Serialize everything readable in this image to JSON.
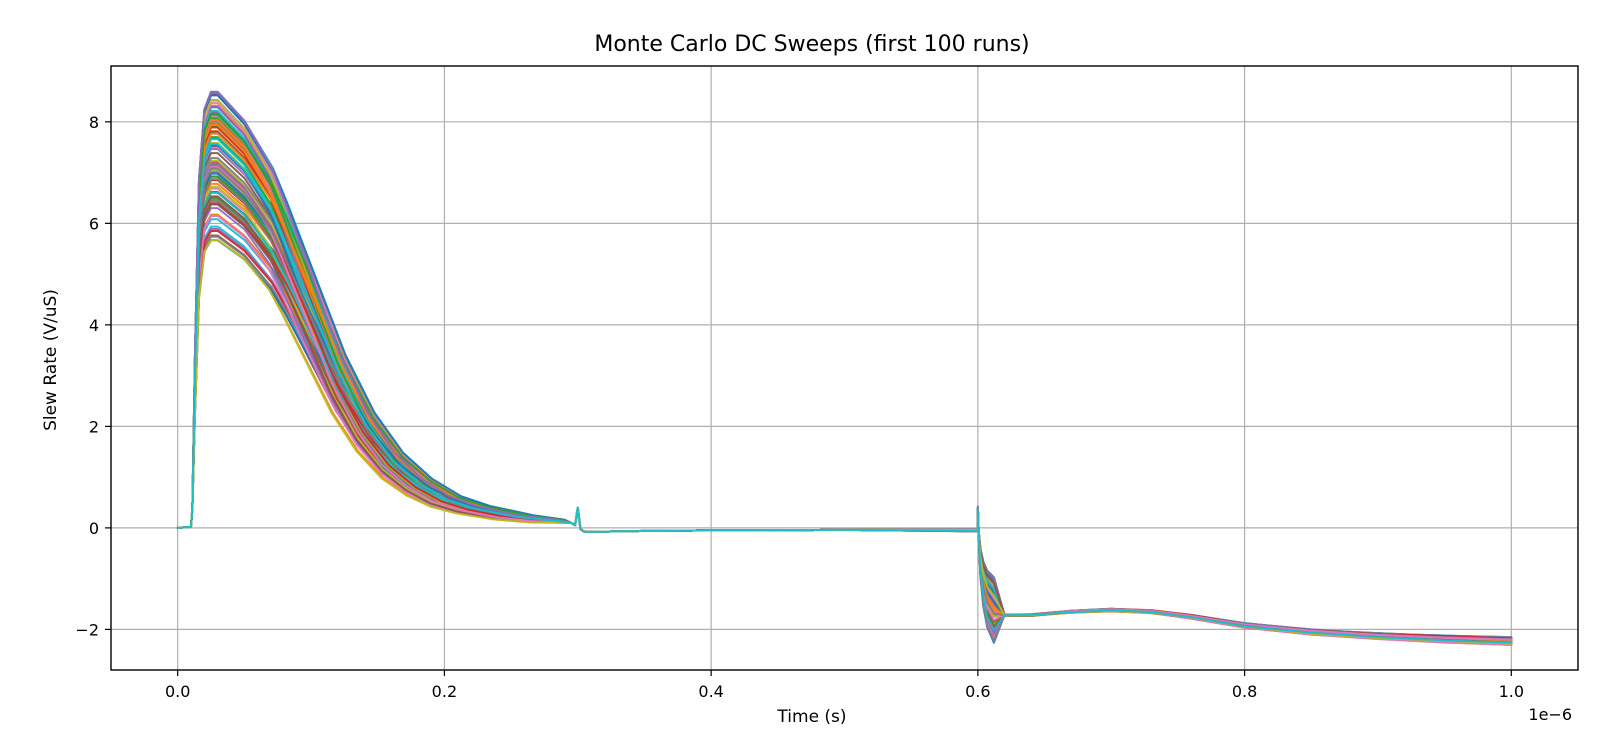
{
  "chart_data": {
    "type": "line",
    "title": "Monte Carlo DC Sweeps (first 100 runs)",
    "xlabel": "Time (s)",
    "ylabel": "Slew Rate (V/uS)",
    "x_offset_label": "1e−6",
    "xlim": [
      -0.05,
      1.05
    ],
    "ylim": [
      -2.8,
      9.1
    ],
    "x_ticks": [
      0.0,
      0.2,
      0.4,
      0.6,
      0.8,
      1.0
    ],
    "x_tick_labels": [
      "0.0",
      "0.2",
      "0.4",
      "0.6",
      "0.8",
      "1.0"
    ],
    "y_ticks": [
      -2,
      0,
      2,
      4,
      6,
      8
    ],
    "y_tick_labels": [
      "−2",
      "0",
      "2",
      "4",
      "6",
      "8"
    ],
    "grid": true,
    "legend": "none",
    "runs_count": 100,
    "series_colors": [
      "#1f77b4",
      "#ff7f0e",
      "#2ca02c",
      "#d62728",
      "#9467bd",
      "#8c564b",
      "#e377c2",
      "#7f7f7f",
      "#bcbd22",
      "#17becf"
    ],
    "representative_curve": {
      "x": [
        0.0,
        0.01,
        0.011,
        0.013,
        0.016,
        0.02,
        0.025,
        0.03,
        0.05,
        0.07,
        0.08,
        0.1,
        0.12,
        0.14,
        0.16,
        0.18,
        0.2,
        0.22,
        0.25,
        0.28,
        0.295,
        0.298,
        0.3,
        0.302,
        0.305,
        0.31,
        0.35,
        0.4,
        0.5,
        0.6,
        0.6,
        0.601,
        0.602,
        0.604,
        0.607,
        0.612,
        0.62,
        0.64,
        0.67,
        0.7,
        0.73,
        0.76,
        0.8,
        0.85,
        0.9,
        0.95,
        1.0
      ],
      "y": [
        0.0,
        0.02,
        0.4,
        3.0,
        6.0,
        7.2,
        7.5,
        7.5,
        7.0,
        6.2,
        5.6,
        4.3,
        3.0,
        2.0,
        1.3,
        0.85,
        0.55,
        0.38,
        0.22,
        0.14,
        0.1,
        0.05,
        0.4,
        -0.02,
        -0.08,
        -0.08,
        -0.06,
        -0.05,
        -0.04,
        -0.05,
        0.3,
        -0.3,
        -0.7,
        -1.1,
        -1.4,
        -1.62,
        -1.72,
        -1.72,
        -1.65,
        -1.62,
        -1.65,
        -1.75,
        -1.92,
        -2.05,
        -2.13,
        -2.19,
        -2.23
      ]
    },
    "peak_range": [
      5.65,
      8.6
    ],
    "final_value_range": [
      -2.26,
      -2.19
    ]
  }
}
